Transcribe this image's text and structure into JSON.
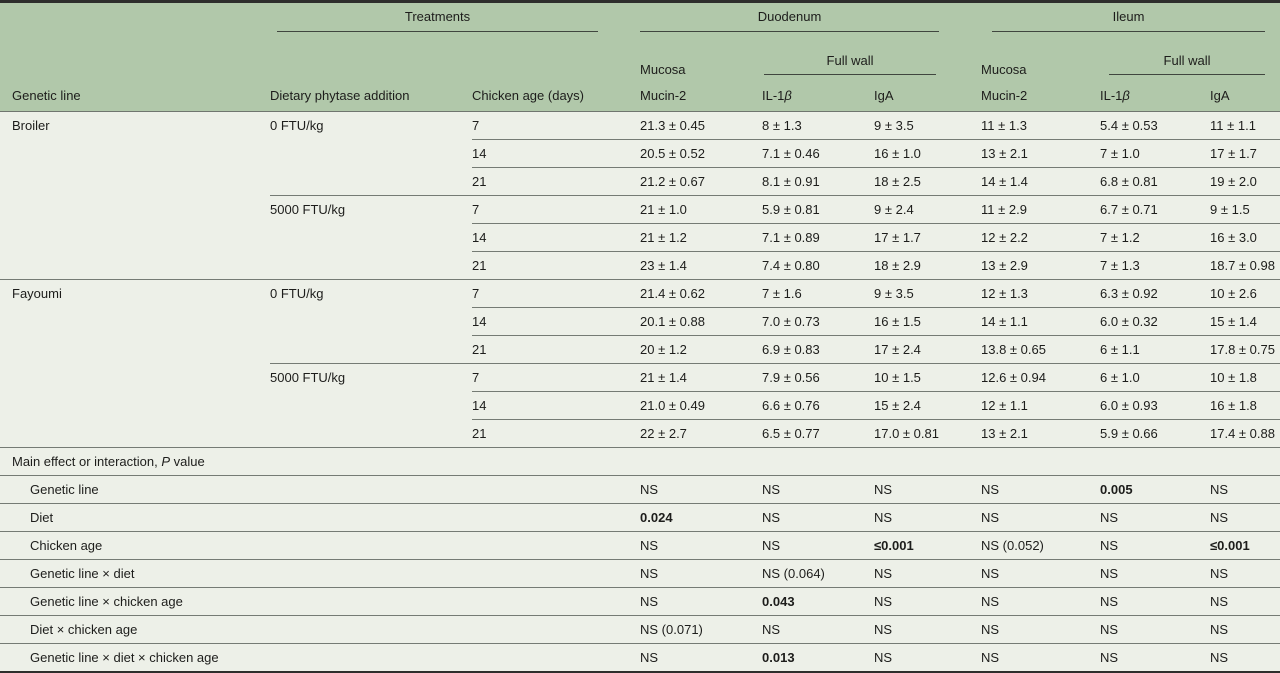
{
  "table": {
    "colors": {
      "header_green": "#b1c8aa",
      "row_background": "#edf0e8",
      "border_dark": "#2e2e2c",
      "separator_gray": "#757b74"
    },
    "header": {
      "treatments": "Treatments",
      "duodenum": "Duodenum",
      "ileum": "Ileum",
      "mucosa": "Mucosa",
      "full_wall": "Full wall",
      "col_genetic_line": "Genetic line",
      "col_diet": "Dietary phytase addition",
      "col_age": "Chicken age (days)",
      "col_mucin2": "Mucin-2",
      "col_il1b_prefix": "IL-1",
      "col_il1b_beta": "β",
      "col_iga": "IgA"
    },
    "rows": [
      {
        "kind": "data",
        "genetic_line": "Broiler",
        "diet": "0 FTU/kg",
        "age": "7",
        "values": [
          "21.3 ± 0.45",
          "8 ± 1.3",
          "9 ± 3.5",
          "11 ± 1.3",
          "5.4 ± 0.53",
          "11 ± 1.1"
        ],
        "sep": "age"
      },
      {
        "kind": "data",
        "genetic_line": "",
        "diet": "",
        "age": "14",
        "values": [
          "20.5 ± 0.52",
          "7.1 ± 0.46",
          "16 ± 1.0",
          "13 ± 2.1",
          "7 ± 1.0",
          "17 ± 1.7"
        ],
        "sep": "age"
      },
      {
        "kind": "data",
        "genetic_line": "",
        "diet": "",
        "age": "21",
        "values": [
          "21.2 ± 0.67",
          "8.1 ± 0.91",
          "18 ± 2.5",
          "14 ± 1.4",
          "6.8 ± 0.81",
          "19 ± 2.0"
        ],
        "sep": "diet"
      },
      {
        "kind": "data",
        "genetic_line": "",
        "diet": "5000 FTU/kg",
        "age": "7",
        "values": [
          "21 ± 1.0",
          "5.9 ± 0.81",
          "9 ± 2.4",
          "11 ± 2.9",
          "6.7 ± 0.71",
          "9 ± 1.5"
        ],
        "sep": "age"
      },
      {
        "kind": "data",
        "genetic_line": "",
        "diet": "",
        "age": "14",
        "values": [
          "21 ± 1.2",
          "7.1 ± 0.89",
          "17 ± 1.7",
          "12 ± 2.2",
          "7 ± 1.2",
          "16 ± 3.0"
        ],
        "sep": "age"
      },
      {
        "kind": "data",
        "genetic_line": "",
        "diet": "",
        "age": "21",
        "values": [
          "23 ± 1.4",
          "7.4 ± 0.80",
          "18 ± 2.9",
          "13 ± 2.9",
          "7 ± 1.3",
          "18.7 ± 0.98"
        ],
        "sep": "line"
      },
      {
        "kind": "data",
        "genetic_line": "Fayoumi",
        "diet": "0 FTU/kg",
        "age": "7",
        "values": [
          "21.4 ± 0.62",
          "7 ± 1.6",
          "9 ± 3.5",
          "12 ± 1.3",
          "6.3 ± 0.92",
          "10 ± 2.6"
        ],
        "sep": "age"
      },
      {
        "kind": "data",
        "genetic_line": "",
        "diet": "",
        "age": "14",
        "values": [
          "20.1 ± 0.88",
          "7.0 ± 0.73",
          "16 ± 1.5",
          "14 ± 1.1",
          "6.0 ± 0.32",
          "15 ± 1.4"
        ],
        "sep": "age"
      },
      {
        "kind": "data",
        "genetic_line": "",
        "diet": "",
        "age": "21",
        "values": [
          "20 ± 1.2",
          "6.9 ± 0.83",
          "17 ± 2.4",
          "13.8 ± 0.65",
          "6 ± 1.1",
          "17.8 ± 0.75"
        ],
        "sep": "diet"
      },
      {
        "kind": "data",
        "genetic_line": "",
        "diet": "5000 FTU/kg",
        "age": "7",
        "values": [
          "21 ± 1.4",
          "7.9 ± 0.56",
          "10 ± 1.5",
          "12.6 ± 0.94",
          "6 ± 1.0",
          "10 ± 1.8"
        ],
        "sep": "age"
      },
      {
        "kind": "data",
        "genetic_line": "",
        "diet": "",
        "age": "14",
        "values": [
          "21.0 ± 0.49",
          "6.6 ± 0.76",
          "15 ± 2.4",
          "12 ± 1.1",
          "6.0 ± 0.93",
          "16 ± 1.8"
        ],
        "sep": "age"
      },
      {
        "kind": "data",
        "genetic_line": "",
        "diet": "",
        "age": "21",
        "values": [
          "22 ± 2.7",
          "6.5 ± 0.77",
          "17.0 ± 0.81",
          "13 ± 2.1",
          "5.9 ± 0.66",
          "17.4 ± 0.88"
        ],
        "sep": "line"
      },
      {
        "kind": "section",
        "prefix": "Main effect or interaction, ",
        "italic": "P",
        "suffix": " value",
        "sep": "line"
      },
      {
        "kind": "p",
        "label": "Genetic line",
        "values": [
          {
            "t": "NS"
          },
          {
            "t": "NS"
          },
          {
            "t": "NS"
          },
          {
            "t": "NS"
          },
          {
            "t": "0.005",
            "b": true
          },
          {
            "t": "NS"
          }
        ],
        "sep": "line"
      },
      {
        "kind": "p",
        "label": "Diet",
        "values": [
          {
            "t": "0.024",
            "b": true
          },
          {
            "t": "NS"
          },
          {
            "t": "NS"
          },
          {
            "t": "NS"
          },
          {
            "t": "NS"
          },
          {
            "t": "NS"
          }
        ],
        "sep": "line"
      },
      {
        "kind": "p",
        "label": "Chicken age",
        "values": [
          {
            "t": "NS"
          },
          {
            "t": "NS"
          },
          {
            "t": "≤0.001",
            "b": true
          },
          {
            "t": "NS (0.052)"
          },
          {
            "t": "NS"
          },
          {
            "t": "≤0.001",
            "b": true
          }
        ],
        "sep": "line"
      },
      {
        "kind": "p",
        "label": "Genetic line × diet",
        "values": [
          {
            "t": "NS"
          },
          {
            "t": "NS (0.064)"
          },
          {
            "t": "NS"
          },
          {
            "t": "NS"
          },
          {
            "t": "NS"
          },
          {
            "t": "NS"
          }
        ],
        "sep": "line"
      },
      {
        "kind": "p",
        "label": "Genetic line × chicken age",
        "values": [
          {
            "t": "NS"
          },
          {
            "t": "0.043",
            "b": true
          },
          {
            "t": "NS"
          },
          {
            "t": "NS"
          },
          {
            "t": "NS"
          },
          {
            "t": "NS"
          }
        ],
        "sep": "line"
      },
      {
        "kind": "p",
        "label": "Diet × chicken age",
        "values": [
          {
            "t": "NS (0.071)"
          },
          {
            "t": "NS"
          },
          {
            "t": "NS"
          },
          {
            "t": "NS"
          },
          {
            "t": "NS"
          },
          {
            "t": "NS"
          }
        ],
        "sep": "line"
      },
      {
        "kind": "p",
        "label": "Genetic line × diet × chicken age",
        "values": [
          {
            "t": "NS"
          },
          {
            "t": "0.013",
            "b": true
          },
          {
            "t": "NS"
          },
          {
            "t": "NS"
          },
          {
            "t": "NS"
          },
          {
            "t": "NS"
          }
        ],
        "sep": "none"
      }
    ]
  }
}
